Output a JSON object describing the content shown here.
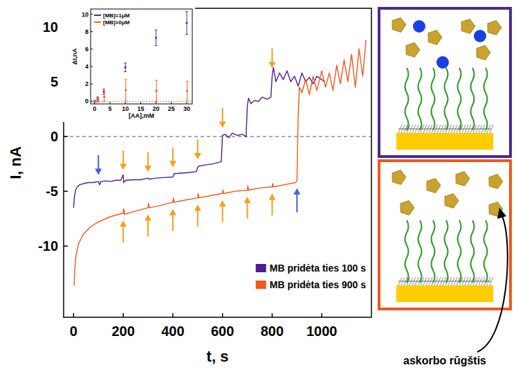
{
  "chart_data": [
    {
      "type": "line",
      "x_label": "t, s",
      "y_label": "I, nA",
      "xlim": [
        -40,
        1200
      ],
      "ylim": [
        -16.5,
        11.7
      ],
      "xticks": [
        0,
        200,
        400,
        600,
        800,
        1000
      ],
      "yticks": [
        -10,
        -5,
        0,
        5,
        10
      ],
      "hline": 0,
      "legend": "lower right",
      "series": [
        {
          "name": "MB pridėta ties 100 s",
          "color": "#4b1f8c",
          "x": [
            0,
            3,
            8,
            15,
            25,
            40,
            60,
            80,
            100,
            105,
            110,
            130,
            150,
            170,
            190,
            200,
            202,
            210,
            240,
            270,
            300,
            305,
            330,
            360,
            400,
            405,
            430,
            460,
            495,
            500,
            505,
            530,
            560,
            595,
            600,
            610,
            625,
            640,
            660,
            680,
            695,
            700,
            705,
            715,
            730,
            745,
            760,
            780,
            795,
            800,
            805,
            815,
            830,
            845,
            860,
            875,
            890,
            905,
            920,
            935,
            950,
            965,
            980,
            1000,
            1010
          ],
          "values": [
            -6.5,
            -5.6,
            -4.9,
            -4.6,
            -4.4,
            -4.3,
            -4.2,
            -4.2,
            -4.1,
            -4.4,
            -4.1,
            -4.05,
            -4.1,
            -4.0,
            -4.0,
            -3.5,
            -4.2,
            -4.0,
            -3.95,
            -3.95,
            -3.8,
            -3.9,
            -3.8,
            -3.75,
            -3.7,
            -3.4,
            -3.35,
            -3.3,
            -3.2,
            -2.8,
            -2.7,
            -2.6,
            -2.5,
            -2.3,
            0.1,
            0.2,
            -0.1,
            0.3,
            0.1,
            0.2,
            0.0,
            2.8,
            3.5,
            3.0,
            3.3,
            3.2,
            3.6,
            3.4,
            3.6,
            5.5,
            6.3,
            5.0,
            5.8,
            5.2,
            6.0,
            5.0,
            5.5,
            4.6,
            5.8,
            5.0,
            5.4,
            4.8,
            5.5,
            5.2,
            5.0
          ],
          "aa_added_t": [
            200,
            300,
            400,
            500,
            600,
            800
          ],
          "mb_added_t": 100
        },
        {
          "name": "MB pridėta ties 900 s",
          "color": "#f0561e",
          "x": [
            2,
            5,
            10,
            20,
            40,
            70,
            100,
            150,
            200,
            202,
            205,
            250,
            300,
            302,
            305,
            350,
            400,
            402,
            405,
            450,
            500,
            502,
            505,
            550,
            600,
            602,
            605,
            650,
            700,
            702,
            705,
            750,
            800,
            802,
            805,
            850,
            895,
            900,
            905,
            910,
            920,
            935,
            950,
            965,
            980,
            1000,
            1015,
            1030,
            1045,
            1060,
            1075,
            1090,
            1105,
            1120,
            1135,
            1150,
            1165,
            1178
          ],
          "values": [
            -13.6,
            -12,
            -10.8,
            -9.8,
            -8.9,
            -8.2,
            -7.8,
            -7.3,
            -7.0,
            -6.6,
            -7.1,
            -6.8,
            -6.5,
            -6.1,
            -6.5,
            -6.3,
            -6.0,
            -5.6,
            -6.0,
            -5.8,
            -5.6,
            -5.2,
            -5.6,
            -5.4,
            -5.2,
            -4.9,
            -5.2,
            -5.0,
            -4.9,
            -4.5,
            -4.9,
            -4.7,
            -4.6,
            -4.3,
            -4.6,
            -4.4,
            -4.2,
            -4.0,
            2.0,
            4.5,
            4.0,
            5.2,
            3.8,
            5.5,
            4.2,
            6.0,
            4.5,
            5.8,
            4.2,
            6.5,
            4.8,
            7.0,
            5.0,
            7.5,
            4.5,
            8.0,
            5.5,
            8.8
          ],
          "aa_added_t": [
            200,
            300,
            400,
            500,
            600,
            700,
            800
          ],
          "mb_added_t": 900
        }
      ]
    },
    {
      "type": "scatter",
      "x_label": "[AA],mM",
      "y_label": "ΔI,nA",
      "xlim": [
        -1.3,
        31.8
      ],
      "ylim": [
        -0.3,
        10.6
      ],
      "xticks": [
        0,
        5,
        10,
        15,
        20,
        25,
        30
      ],
      "yticks": [
        0,
        2,
        4,
        6,
        8,
        10
      ],
      "hline": 0,
      "legend": "upper left",
      "marker": "circle",
      "series": [
        {
          "name": "[MB]=1μM",
          "color": "#5a2a92",
          "x": [
            0,
            1,
            3,
            10,
            20,
            30
          ],
          "values": [
            0,
            0.3,
            1.1,
            3.9,
            7.3,
            9.0
          ],
          "errors": [
            0.1,
            0.2,
            0.3,
            0.5,
            0.9,
            1.3
          ]
        },
        {
          "name": "[MB]=0μM",
          "color": "#f3652a",
          "x": [
            0,
            1,
            3,
            10,
            20,
            30
          ],
          "values": [
            0,
            0.1,
            0.5,
            1.3,
            1.2,
            1.2
          ],
          "errors": [
            0.1,
            0.2,
            0.5,
            1.2,
            1.2,
            1.1
          ]
        }
      ]
    }
  ],
  "diagram": {
    "label": "askorbo rūgštis"
  }
}
